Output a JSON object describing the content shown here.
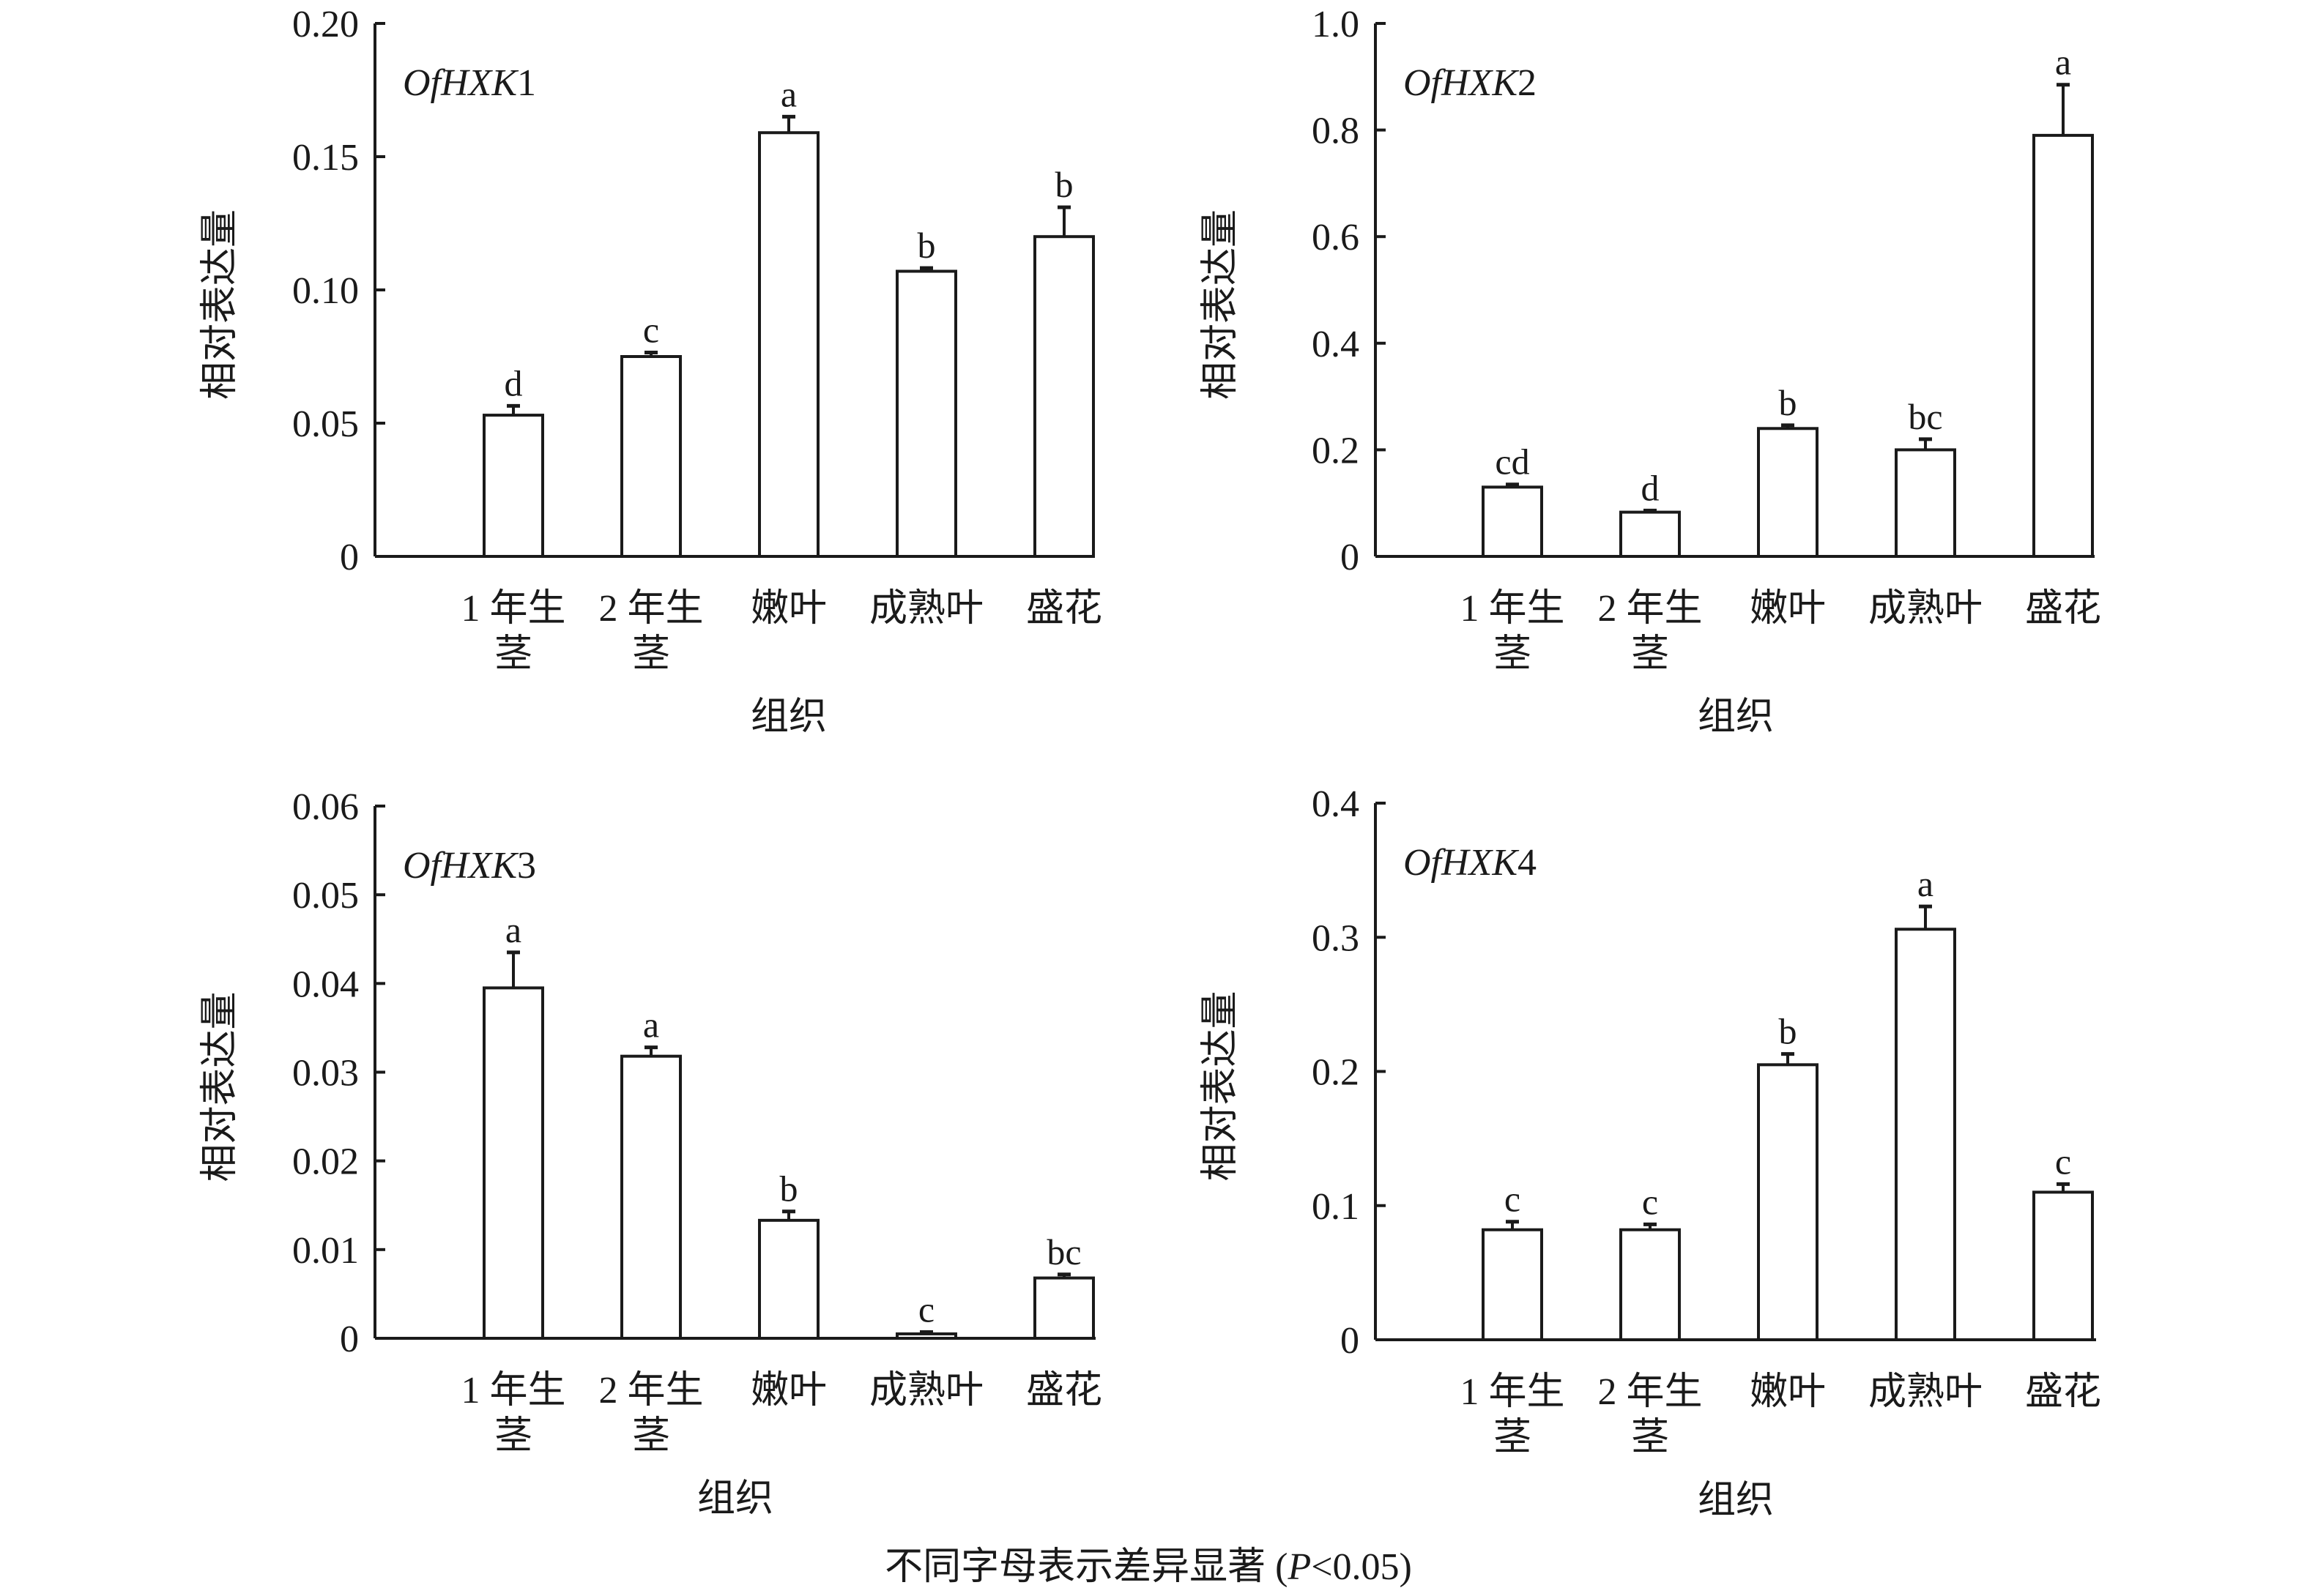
{
  "footer": {
    "before": "不同字母表示差异显著 (",
    "italic": "P",
    "after": "<0.05)"
  },
  "chart_data": [
    {
      "type": "bar",
      "title": "OfHXK1",
      "gene_italic": "OfHXK",
      "gene_num": "1",
      "xlabel": "组织",
      "ylabel": "相对表达量",
      "categories": [
        [
          "1 年生",
          "茎"
        ],
        [
          "2 年生",
          "茎"
        ],
        [
          "嫩叶"
        ],
        [
          "成熟叶"
        ],
        [
          "盛花"
        ]
      ],
      "values": [
        0.053,
        0.075,
        0.159,
        0.107,
        0.12
      ],
      "errors": [
        0.0035,
        0.0015,
        0.006,
        0.0012,
        0.011
      ],
      "significance": [
        "d",
        "c",
        "a",
        "b",
        "b"
      ],
      "ylim": [
        0,
        0.2
      ],
      "yticks": [
        "0",
        "0.05",
        "0.10",
        "0.15",
        "0.20"
      ],
      "ytick_values": [
        0,
        0.05,
        0.1,
        0.15,
        0.2
      ]
    },
    {
      "type": "bar",
      "title": "OfHXK2",
      "gene_italic": "OfHXK",
      "gene_num": "2",
      "xlabel": "组织",
      "ylabel": "相对表达量",
      "categories": [
        [
          "1 年生",
          "茎"
        ],
        [
          "2 年生",
          "茎"
        ],
        [
          "嫩叶"
        ],
        [
          "成熟叶"
        ],
        [
          "盛花"
        ]
      ],
      "values": [
        0.13,
        0.083,
        0.24,
        0.2,
        0.79
      ],
      "errors": [
        0.005,
        0.003,
        0.006,
        0.02,
        0.095
      ],
      "significance": [
        "cd",
        "d",
        "b",
        "bc",
        "a"
      ],
      "ylim": [
        0,
        1.0
      ],
      "yticks": [
        "0",
        "0.2",
        "0.4",
        "0.6",
        "0.8",
        "1.0"
      ],
      "ytick_values": [
        0,
        0.2,
        0.4,
        0.6,
        0.8,
        1.0
      ]
    },
    {
      "type": "bar",
      "title": "OfHXK3",
      "gene_italic": "OfHXK",
      "gene_num": "3",
      "xlabel": "组织",
      "ylabel": "相对表达量",
      "categories": [
        [
          "1 年生",
          "茎"
        ],
        [
          "2 年生",
          "茎"
        ],
        [
          "嫩叶"
        ],
        [
          "成熟叶"
        ],
        [
          "盛花"
        ]
      ],
      "values": [
        0.0395,
        0.0318,
        0.0133,
        0.0005,
        0.0068
      ],
      "errors": [
        0.004,
        0.001,
        0.001,
        0.0002,
        0.0004
      ],
      "significance": [
        "a",
        "a",
        "b",
        "c",
        "bc"
      ],
      "ylim": [
        0,
        0.06
      ],
      "yticks": [
        "0",
        "0.01",
        "0.02",
        "0.03",
        "0.04",
        "0.05",
        "0.06"
      ],
      "ytick_values": [
        0,
        0.01,
        0.02,
        0.03,
        0.04,
        0.05,
        0.06
      ]
    },
    {
      "type": "bar",
      "title": "OfHXK4",
      "gene_italic": "OfHXK",
      "gene_num": "4",
      "xlabel": "组织",
      "ylabel": "相对表达量",
      "categories": [
        [
          "1 年生",
          "茎"
        ],
        [
          "2 年生",
          "茎"
        ],
        [
          "嫩叶"
        ],
        [
          "成熟叶"
        ],
        [
          "盛花"
        ]
      ],
      "values": [
        0.082,
        0.082,
        0.205,
        0.306,
        0.11
      ],
      "errors": [
        0.006,
        0.004,
        0.008,
        0.017,
        0.006
      ],
      "significance": [
        "c",
        "c",
        "b",
        "a",
        "c"
      ],
      "ylim": [
        0,
        0.4
      ],
      "yticks": [
        "0",
        "0.1",
        "0.2",
        "0.3",
        "0.4"
      ],
      "ytick_values": [
        0,
        0.1,
        0.2,
        0.3,
        0.4
      ]
    }
  ]
}
